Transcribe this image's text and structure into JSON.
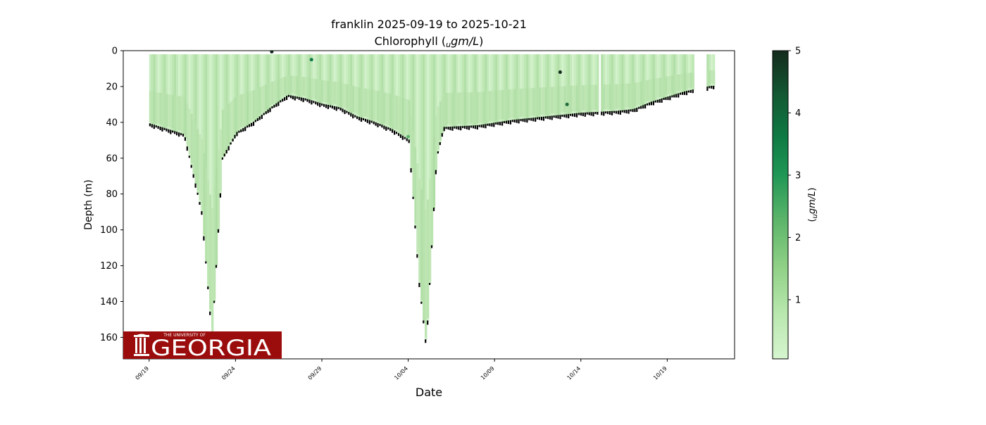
{
  "chart_data": {
    "type": "scatter",
    "title": "franklin 2025-09-19 to 2025-10-21",
    "subtitle": "Chlorophyll (_ugm/L)",
    "subtitle_plain": "Chlorophyll (",
    "subtitle_unit": "ugm/L",
    "xlabel": "Date",
    "ylabel": "Depth (m)",
    "x_ticks": [
      "09/19",
      "09/24",
      "09/29",
      "10/04",
      "10/09",
      "10/14",
      "10/19"
    ],
    "xlim": [
      "2025-09-17.5",
      "2025-10-22.9"
    ],
    "ylim": [
      172,
      0
    ],
    "y_ticks": [
      0,
      20,
      40,
      60,
      80,
      100,
      120,
      140,
      160
    ],
    "grid": false,
    "colorbar": {
      "label": "(_ugm/L)",
      "label_unit": "ugm/L",
      "range": [
        0.05,
        5
      ],
      "ticks": [
        1,
        2,
        3,
        4,
        5
      ],
      "colormap": [
        "#d6f5cf",
        "#a8dd9f",
        "#72c26f",
        "#34a55a",
        "#0e8a4b",
        "#0d6b3a",
        "#12472a",
        "#142b1d"
      ]
    },
    "profile_bottom_depth": [
      {
        "date": "2025-09-19",
        "depth": 41
      },
      {
        "date": "2025-09-20",
        "depth": 44
      },
      {
        "date": "2025-09-21",
        "depth": 47
      },
      {
        "date": "2025-09-22",
        "depth": 90
      },
      {
        "date": "2025-09-22.6",
        "depth": 160
      },
      {
        "date": "2025-09-23.2",
        "depth": 60
      },
      {
        "date": "2025-09-24",
        "depth": 46
      },
      {
        "date": "2025-09-25",
        "depth": 40
      },
      {
        "date": "2025-09-26",
        "depth": 32
      },
      {
        "date": "2025-09-27",
        "depth": 25
      },
      {
        "date": "2025-09-28",
        "depth": 27
      },
      {
        "date": "2025-09-29",
        "depth": 30
      },
      {
        "date": "2025-09-30",
        "depth": 32
      },
      {
        "date": "2025-10-01",
        "depth": 37
      },
      {
        "date": "2025-10-02",
        "depth": 40
      },
      {
        "date": "2025-10-03",
        "depth": 44
      },
      {
        "date": "2025-10-04",
        "depth": 50
      },
      {
        "date": "2025-10-04.6",
        "depth": 130
      },
      {
        "date": "2025-10-05",
        "depth": 165
      },
      {
        "date": "2025-10-05.6",
        "depth": 60
      },
      {
        "date": "2025-10-06",
        "depth": 43
      },
      {
        "date": "2025-10-08",
        "depth": 42
      },
      {
        "date": "2025-10-10",
        "depth": 39
      },
      {
        "date": "2025-10-12",
        "depth": 37
      },
      {
        "date": "2025-10-14",
        "depth": 35
      },
      {
        "date": "2025-10-16",
        "depth": 34
      },
      {
        "date": "2025-10-17",
        "depth": 33
      },
      {
        "date": "2025-10-18",
        "depth": 29
      },
      {
        "date": "2025-10-19",
        "depth": 26
      },
      {
        "date": "2025-10-20",
        "depth": 23
      },
      {
        "date": "2025-10-21.5",
        "depth": 20
      }
    ],
    "chlorophyll_typical": 0.4,
    "logo_text": "GEORGIA",
    "logo_small_text": "THE UNIVERSITY OF"
  }
}
